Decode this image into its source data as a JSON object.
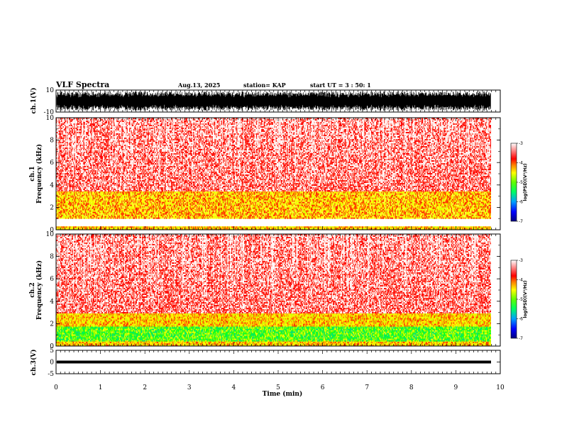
{
  "header": {
    "title": "VLF Spectra",
    "date": "Aug.13, 2025",
    "station": "station= KAP",
    "start": "start  UT =   3 : 50: 1"
  },
  "chart_data": [
    {
      "type": "line",
      "panel": "ch1-waveform",
      "ylabel": "ch.1(V)",
      "ylim": [
        -10,
        10
      ],
      "y_ticks": [
        "10",
        "-10"
      ],
      "x_range_min": [
        0,
        9.83
      ],
      "description_values": {
        "amplitude_typical_V": 8
      }
    },
    {
      "type": "heatmap",
      "panel": "ch1-spectrogram",
      "ylabel": "ch.1\nFrequency  (kHz)",
      "ylim": [
        0,
        10
      ],
      "y_ticks": [
        "0",
        "2",
        "4",
        "6",
        "8",
        "10"
      ],
      "x_range_min": [
        0,
        9.83
      ],
      "bands_kHz": [
        {
          "from": 0,
          "to": 0.3,
          "level": "yellow"
        },
        {
          "from": 1.0,
          "to": 3.5,
          "level": "yellow-green"
        },
        {
          "from": 3.5,
          "to": 10,
          "level": "red"
        }
      ],
      "colorbar": {
        "label": "log(PSD)(V²/Hz)",
        "ticks": [
          "-3",
          "-4",
          "-5",
          "-6",
          "-7"
        ],
        "range": [
          -7,
          -3
        ]
      }
    },
    {
      "type": "heatmap",
      "panel": "ch2-spectrogram",
      "ylabel": "ch.2\nFrequency  (kHz)",
      "ylim": [
        0,
        10
      ],
      "y_ticks": [
        "0",
        "2",
        "4",
        "6",
        "8",
        "10"
      ],
      "x_range_min": [
        0,
        9.83
      ],
      "bands_kHz": [
        {
          "from": 0,
          "to": 0.5,
          "level": "yellow"
        },
        {
          "from": 0.5,
          "to": 1.8,
          "level": "green"
        },
        {
          "from": 1.8,
          "to": 3.0,
          "level": "yellow"
        },
        {
          "from": 3.0,
          "to": 10,
          "level": "red"
        }
      ],
      "colorbar": {
        "label": "log(PSD)(V²/Hz)",
        "ticks": [
          "-3",
          "-4",
          "-5",
          "-6",
          "-7"
        ],
        "range": [
          -7,
          -3
        ]
      }
    },
    {
      "type": "line",
      "panel": "ch3-waveform",
      "ylabel": "ch.3(V)",
      "ylim": [
        -5,
        5
      ],
      "y_ticks": [
        "5",
        "0",
        "-5"
      ],
      "x_range_min": [
        0,
        9.83
      ],
      "description_values": {
        "center_V": 0,
        "amplitude_V": 0.6
      }
    }
  ],
  "x_axis": {
    "label": "Time  (min)",
    "ticks": [
      "0",
      "1",
      "2",
      "3",
      "4",
      "5",
      "6",
      "7",
      "8",
      "9",
      "10"
    ],
    "xlim": [
      0,
      10
    ]
  }
}
